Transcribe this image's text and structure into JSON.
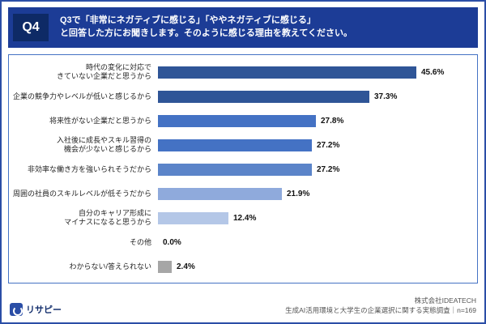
{
  "header": {
    "badge": "Q4",
    "title_line1": "Q3で「非常にネガティブに感じる」「ややネガティブに感じる」",
    "title_line2": "と回答した方にお聞きします。そのように感じる理由を教えてください。"
  },
  "chart_data": {
    "type": "bar",
    "orientation": "horizontal",
    "categories": [
      "時代の変化に対応で\nきていない企業だと思うから",
      "企業の競争力やレベルが低いと感じるから",
      "将来性がない企業だと思うから",
      "入社後に成長やスキル習得の\n機会が少ないと感じるから",
      "非効率な働き方を強いられそうだから",
      "周囲の社員のスキルレベルが低そうだから",
      "自分のキャリア形成に\nマイナスになると思うから",
      "その他",
      "わからない/答えられない"
    ],
    "values": [
      45.6,
      37.3,
      27.8,
      27.2,
      27.2,
      21.9,
      12.4,
      0.0,
      2.4
    ],
    "value_labels": [
      "45.6%",
      "37.3%",
      "27.8%",
      "27.2%",
      "27.2%",
      "21.9%",
      "12.4%",
      "0.0%",
      "2.4%"
    ],
    "colors": [
      "#2f5597",
      "#2f5597",
      "#4472c4",
      "#4472c4",
      "#5b84c9",
      "#8faadc",
      "#b4c7e7",
      "#ffffff",
      "#a6a6a6"
    ],
    "title": "",
    "xlabel": "",
    "ylabel": "",
    "xlim": [
      0,
      50
    ],
    "grid": false,
    "legend": "none",
    "unit": "%",
    "n": 169
  },
  "footer": {
    "logo_text": "リサピー",
    "company": "株式会社IDEATECH",
    "survey": "生成AI活用環境と大学生の企業選択に関する実態調査｜n=169"
  }
}
